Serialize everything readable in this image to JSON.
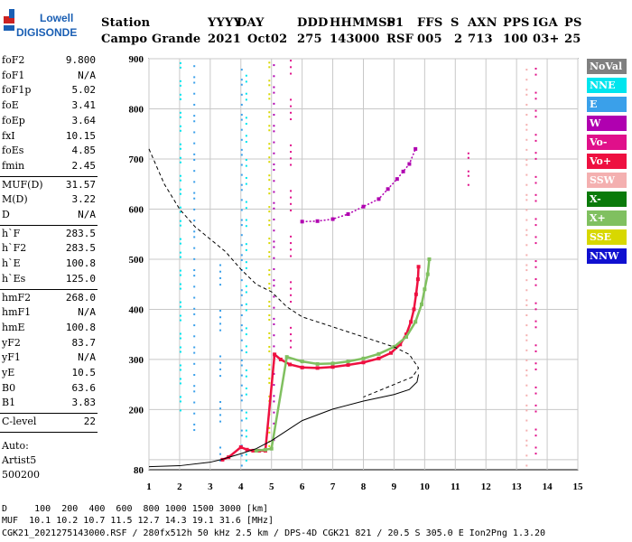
{
  "logo": {
    "line1": "Lowell",
    "line2": "DIGISONDE"
  },
  "header": {
    "labels": [
      "Station",
      "YYYY",
      "DAY",
      "DDD",
      "HHMMSS",
      "P1",
      "FFS",
      "S",
      "AXN",
      "PPS",
      "IGA",
      "PS"
    ],
    "values": [
      "Campo Grande",
      "2021",
      "Oct02",
      "275",
      "143000",
      "RSF",
      "005",
      "2",
      "713",
      "100",
      "03+",
      "25"
    ]
  },
  "params": [
    {
      "label": "foF2",
      "value": "9.800"
    },
    {
      "label": "foF1",
      "value": "N/A"
    },
    {
      "label": "foF1p",
      "value": "5.02"
    },
    {
      "label": "foE",
      "value": "3.41"
    },
    {
      "label": "foEp",
      "value": "3.64"
    },
    {
      "label": "fxI",
      "value": "10.15"
    },
    {
      "label": "foEs",
      "value": "4.85"
    },
    {
      "label": "fmin",
      "value": "2.45"
    },
    {
      "label": "MUF(D)",
      "value": "31.57"
    },
    {
      "label": "M(D)",
      "value": "3.22"
    },
    {
      "label": "D",
      "value": "N/A"
    },
    {
      "label": "h`F",
      "value": "283.5"
    },
    {
      "label": "h`F2",
      "value": "283.5"
    },
    {
      "label": "h`E",
      "value": "100.8"
    },
    {
      "label": "h`Es",
      "value": "125.0"
    },
    {
      "label": "hmF2",
      "value": "268.0"
    },
    {
      "label": "hmF1",
      "value": "N/A"
    },
    {
      "label": "hmE",
      "value": "100.8"
    },
    {
      "label": "yF2",
      "value": "83.7"
    },
    {
      "label": "yF1",
      "value": "N/A"
    },
    {
      "label": "yE",
      "value": "10.5"
    },
    {
      "label": "B0",
      "value": "63.6"
    },
    {
      "label": "B1",
      "value": "3.83"
    },
    {
      "label": "C-level",
      "value": "22"
    }
  ],
  "auto": {
    "line1": "Auto:",
    "line2": "Artist5",
    "line3": "500200"
  },
  "legend": [
    {
      "label": "NoVal",
      "color": "#808080"
    },
    {
      "label": "NNE",
      "color": "#00e5ee"
    },
    {
      "label": "E",
      "color": "#3aa0ea"
    },
    {
      "label": "W",
      "color": "#b000b0"
    },
    {
      "label": "Vo-",
      "color": "#e0108a"
    },
    {
      "label": "Vo+",
      "color": "#ee1040"
    },
    {
      "label": "SSW",
      "color": "#f4b0b0"
    },
    {
      "label": "X-",
      "color": "#0a7a0a"
    },
    {
      "label": "X+",
      "color": "#80c060"
    },
    {
      "label": "SSE",
      "color": "#d8d800"
    },
    {
      "label": "NNW",
      "color": "#1010d0"
    }
  ],
  "chart_data": {
    "type": "scatter",
    "xlim": [
      1,
      15
    ],
    "ylim": [
      80,
      900
    ],
    "xticks": [
      "1",
      "2",
      "3",
      "4",
      "5",
      "6",
      "7",
      "8",
      "9",
      "10",
      "11",
      "12",
      "13",
      "14",
      "15"
    ],
    "yticks": [
      "80",
      "200",
      "300",
      "400",
      "500",
      "600",
      "700",
      "800",
      "900"
    ],
    "grid": true,
    "series": [
      {
        "name": "Vo+",
        "style": "scatter",
        "color": "#ee1040",
        "x": [
          3.4,
          3.6,
          4.0,
          4.2,
          4.4,
          4.6,
          4.8,
          5.1,
          5.3,
          5.6,
          6.0,
          6.5,
          7.0,
          7.5,
          8.0,
          8.5,
          8.9,
          9.2,
          9.4,
          9.55,
          9.65,
          9.72,
          9.78,
          9.8
        ],
        "y": [
          100,
          105,
          125,
          120,
          118,
          118,
          118,
          310,
          300,
          290,
          284,
          283,
          285,
          289,
          294,
          302,
          313,
          330,
          350,
          375,
          400,
          430,
          460,
          485
        ]
      },
      {
        "name": "X+",
        "style": "scatter",
        "color": "#80c060",
        "x": [
          4.5,
          4.8,
          5.0,
          5.5,
          6.0,
          6.5,
          7.0,
          7.5,
          8.0,
          8.5,
          9.0,
          9.4,
          9.7,
          9.9,
          10.0,
          10.1,
          10.15
        ],
        "y": [
          118,
          120,
          122,
          305,
          296,
          291,
          292,
          296,
          302,
          311,
          325,
          345,
          375,
          410,
          440,
          470,
          500
        ]
      },
      {
        "name": "W",
        "style": "scatter",
        "color": "#b000b0",
        "x": [
          6.0,
          6.5,
          7.0,
          7.5,
          8.0,
          8.5,
          8.8,
          9.1,
          9.3,
          9.5,
          9.7
        ],
        "y": [
          575,
          576,
          580,
          590,
          605,
          620,
          640,
          660,
          675,
          690,
          720
        ]
      },
      {
        "name": "Profile",
        "style": "line",
        "color": "#000000",
        "x": [
          1.0,
          2.0,
          3.0,
          3.4,
          4.0,
          4.5,
          5.0,
          5.5,
          6.0,
          7.0,
          8.0,
          9.0,
          9.5,
          9.75,
          9.8
        ],
        "y": [
          86,
          88,
          95,
          101,
          112,
          122,
          138,
          158,
          178,
          201,
          217,
          230,
          240,
          255,
          270
        ]
      },
      {
        "name": "Topside",
        "style": "dashed",
        "color": "#000000",
        "x": [
          1.0,
          1.5,
          2.0,
          2.5,
          3.0,
          3.5,
          4.0,
          4.5,
          5.0,
          5.5,
          6.0,
          6.5,
          7.0,
          7.5,
          8.0,
          8.5,
          9.0,
          9.5,
          9.8,
          9.6,
          9.0,
          8.0
        ],
        "y": [
          720,
          650,
          600,
          565,
          540,
          515,
          480,
          450,
          435,
          405,
          385,
          375,
          365,
          355,
          345,
          335,
          325,
          310,
          283,
          265,
          250,
          225
        ]
      }
    ]
  },
  "footer": {
    "line1": "D     100  200  400  600  800 1000 1500 3000 [km]",
    "line2": "MUF  10.1 10.2 10.7 11.5 12.7 14.3 19.1 31.6 [MHz]",
    "line3": "CGK21_2021275143000.RSF / 280fx512h 50 kHz 2.5 km / DPS-4D CGK21 821 / 20.5 S 305.0 E Ion2Png 1.3.20"
  }
}
